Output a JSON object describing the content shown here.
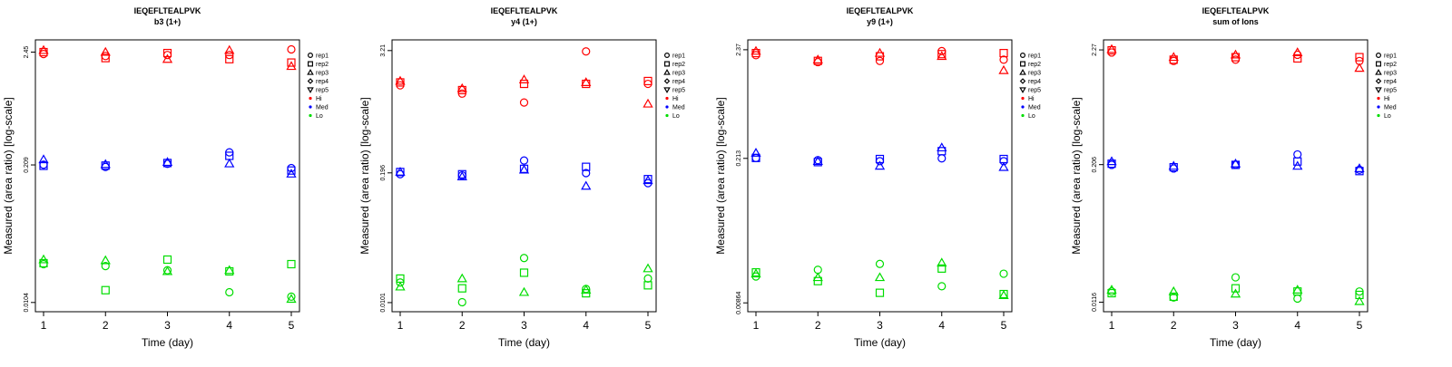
{
  "chart_data": [
    {
      "type": "scatter",
      "title": "IEQEFLTEALPVK",
      "subtitle": "b3 (1+)",
      "xlabel": "Time (day)",
      "ylabel": "Measured (area ratio) [log-scale]",
      "x_ticks": [
        1,
        2,
        3,
        4,
        5
      ],
      "y_ticks": [
        "0.0104",
        "0.209",
        "2.45"
      ],
      "ylim": [
        0.0085,
        3.2
      ],
      "y_scale": "log",
      "series": [
        {
          "group": "Hi",
          "color": "#ff0000",
          "points": {
            "rep1": [
              [
                1,
                2.35
              ],
              [
                2,
                2.25
              ],
              [
                3,
                2.3
              ],
              [
                4,
                2.3
              ],
              [
                5,
                2.6
              ]
            ],
            "rep2": [
              [
                1,
                2.45
              ],
              [
                2,
                2.15
              ],
              [
                3,
                2.4
              ],
              [
                4,
                2.1
              ],
              [
                5,
                1.95
              ]
            ],
            "rep3": [
              [
                1,
                2.55
              ],
              [
                2,
                2.45
              ],
              [
                3,
                2.1
              ],
              [
                4,
                2.55
              ],
              [
                5,
                1.8
              ]
            ]
          }
        },
        {
          "group": "Med",
          "color": "#0000ff",
          "points": {
            "rep1": [
              [
                1,
                0.21
              ],
              [
                2,
                0.2
              ],
              [
                3,
                0.214
              ],
              [
                4,
                0.275
              ],
              [
                5,
                0.195
              ]
            ],
            "rep2": [
              [
                1,
                0.205
              ],
              [
                2,
                0.206
              ],
              [
                3,
                0.218
              ],
              [
                4,
                0.255
              ],
              [
                5,
                0.185
              ]
            ],
            "rep3": [
              [
                1,
                0.235
              ],
              [
                2,
                0.212
              ],
              [
                3,
                0.222
              ],
              [
                4,
                0.215
              ],
              [
                5,
                0.172
              ]
            ]
          }
        },
        {
          "group": "Lo",
          "color": "#00dd00",
          "points": {
            "rep1": [
              [
                1,
                0.024
              ],
              [
                2,
                0.023
              ],
              [
                3,
                0.021
              ],
              [
                4,
                0.013
              ],
              [
                5,
                0.0118
              ]
            ],
            "rep2": [
              [
                1,
                0.0245
              ],
              [
                2,
                0.0136
              ],
              [
                3,
                0.0265
              ],
              [
                4,
                0.0205
              ],
              [
                5,
                0.024
              ]
            ],
            "rep3": [
              [
                1,
                0.0265
              ],
              [
                2,
                0.026
              ],
              [
                3,
                0.0205
              ],
              [
                4,
                0.021
              ],
              [
                5,
                0.0112
              ]
            ]
          }
        }
      ]
    },
    {
      "type": "scatter",
      "title": "IEQEFLTEALPVK",
      "subtitle": "y4 (1+)",
      "xlabel": "Time (day)",
      "ylabel": "Measured (area ratio) [log-scale]",
      "x_ticks": [
        1,
        2,
        3,
        4,
        5
      ],
      "y_ticks": [
        "0.0101",
        "0.196",
        "3.21"
      ],
      "ylim": [
        0.0082,
        4.1
      ],
      "y_scale": "log",
      "series": [
        {
          "group": "Hi",
          "color": "#ff0000",
          "points": {
            "rep1": [
              [
                1,
                1.45
              ],
              [
                2,
                1.2
              ],
              [
                3,
                0.98
              ],
              [
                4,
                3.15
              ],
              [
                5,
                1.5
              ]
            ],
            "rep2": [
              [
                1,
                1.55
              ],
              [
                2,
                1.3
              ],
              [
                3,
                1.5
              ],
              [
                4,
                1.5
              ],
              [
                5,
                1.6
              ]
            ],
            "rep3": [
              [
                1,
                1.6
              ],
              [
                2,
                1.35
              ],
              [
                3,
                1.65
              ],
              [
                4,
                1.55
              ],
              [
                5,
                0.95
              ]
            ]
          }
        },
        {
          "group": "Med",
          "color": "#0000ff",
          "points": {
            "rep1": [
              [
                1,
                0.19
              ],
              [
                2,
                0.185
              ],
              [
                3,
                0.26
              ],
              [
                4,
                0.195
              ],
              [
                5,
                0.155
              ]
            ],
            "rep2": [
              [
                1,
                0.2
              ],
              [
                2,
                0.19
              ],
              [
                3,
                0.215
              ],
              [
                4,
                0.225
              ],
              [
                5,
                0.17
              ]
            ],
            "rep3": [
              [
                1,
                0.2
              ],
              [
                2,
                0.18
              ],
              [
                3,
                0.21
              ],
              [
                4,
                0.145
              ],
              [
                5,
                0.165
              ]
            ]
          }
        },
        {
          "group": "Lo",
          "color": "#00dd00",
          "points": {
            "rep1": [
              [
                1,
                0.016
              ],
              [
                2,
                0.0102
              ],
              [
                3,
                0.028
              ],
              [
                4,
                0.0138
              ],
              [
                5,
                0.0175
              ]
            ],
            "rep2": [
              [
                1,
                0.0175
              ],
              [
                2,
                0.014
              ],
              [
                3,
                0.02
              ],
              [
                4,
                0.0125
              ],
              [
                5,
                0.015
              ]
            ],
            "rep3": [
              [
                1,
                0.0145
              ],
              [
                2,
                0.0175
              ],
              [
                3,
                0.0128
              ],
              [
                4,
                0.0135
              ],
              [
                5,
                0.022
              ]
            ]
          }
        }
      ]
    },
    {
      "type": "scatter",
      "title": "IEQEFLTEALPVK",
      "subtitle": "y9 (1+)",
      "xlabel": "Time (day)",
      "ylabel": "Measured (area ratio) [log-scale]",
      "x_ticks": [
        1,
        2,
        3,
        4,
        5
      ],
      "y_ticks": [
        "0.00864",
        "0.213",
        "2.37"
      ],
      "ylim": [
        0.0071,
        2.95
      ],
      "y_scale": "log",
      "series": [
        {
          "group": "Hi",
          "color": "#ff0000",
          "points": {
            "rep1": [
              [
                1,
                2.1
              ],
              [
                2,
                1.8
              ],
              [
                3,
                1.85
              ],
              [
                4,
                2.3
              ],
              [
                5,
                1.9
              ]
            ],
            "rep2": [
              [
                1,
                2.2
              ],
              [
                2,
                1.85
              ],
              [
                3,
                2.05
              ],
              [
                4,
                2.15
              ],
              [
                5,
                2.2
              ]
            ],
            "rep3": [
              [
                1,
                2.3
              ],
              [
                2,
                1.9
              ],
              [
                3,
                2.2
              ],
              [
                4,
                2.05
              ],
              [
                5,
                1.5
              ]
            ]
          }
        },
        {
          "group": "Med",
          "color": "#0000ff",
          "points": {
            "rep1": [
              [
                1,
                0.215
              ],
              [
                2,
                0.205
              ],
              [
                3,
                0.2
              ],
              [
                4,
                0.213
              ],
              [
                5,
                0.2
              ]
            ],
            "rep2": [
              [
                1,
                0.215
              ],
              [
                2,
                0.196
              ],
              [
                3,
                0.21
              ],
              [
                4,
                0.25
              ],
              [
                5,
                0.21
              ]
            ],
            "rep3": [
              [
                1,
                0.24
              ],
              [
                2,
                0.2
              ],
              [
                3,
                0.18
              ],
              [
                4,
                0.27
              ],
              [
                5,
                0.175
              ]
            ]
          }
        },
        {
          "group": "Lo",
          "color": "#00dd00",
          "points": {
            "rep1": [
              [
                1,
                0.0155
              ],
              [
                2,
                0.018
              ],
              [
                3,
                0.0205
              ],
              [
                4,
                0.0125
              ],
              [
                5,
                0.0165
              ]
            ],
            "rep2": [
              [
                1,
                0.017
              ],
              [
                2,
                0.014
              ],
              [
                3,
                0.0108
              ],
              [
                4,
                0.0185
              ],
              [
                5,
                0.0105
              ]
            ],
            "rep3": [
              [
                1,
                0.0165
              ],
              [
                2,
                0.0152
              ],
              [
                3,
                0.0152
              ],
              [
                4,
                0.021
              ],
              [
                5,
                0.0102
              ]
            ]
          }
        }
      ]
    },
    {
      "type": "scatter",
      "title": "IEQEFLTEALPVK",
      "subtitle": "sum of Ions",
      "xlabel": "Time (day)",
      "ylabel": "Measured (area ratio) [log-scale]",
      "x_ticks": [
        1,
        2,
        3,
        4,
        5
      ],
      "y_ticks": [
        "0.0116",
        "0.206",
        "2.27"
      ],
      "ylim": [
        0.0095,
        2.8
      ],
      "y_scale": "log",
      "series": [
        {
          "group": "Hi",
          "color": "#ff0000",
          "points": {
            "rep1": [
              [
                1,
                2.15
              ],
              [
                2,
                1.8
              ],
              [
                3,
                1.85
              ],
              [
                4,
                2.05
              ],
              [
                5,
                1.8
              ]
            ],
            "rep2": [
              [
                1,
                2.25
              ],
              [
                2,
                1.85
              ],
              [
                3,
                1.95
              ],
              [
                4,
                1.9
              ],
              [
                5,
                1.95
              ]
            ],
            "rep3": [
              [
                1,
                2.3
              ],
              [
                2,
                1.95
              ],
              [
                3,
                2.05
              ],
              [
                4,
                2.15
              ],
              [
                5,
                1.55
              ]
            ]
          }
        },
        {
          "group": "Med",
          "color": "#0000ff",
          "points": {
            "rep1": [
              [
                1,
                0.205
              ],
              [
                2,
                0.19
              ],
              [
                3,
                0.206
              ],
              [
                4,
                0.255
              ],
              [
                5,
                0.185
              ]
            ],
            "rep2": [
              [
                1,
                0.21
              ],
              [
                2,
                0.195
              ],
              [
                3,
                0.205
              ],
              [
                4,
                0.22
              ],
              [
                5,
                0.18
              ]
            ],
            "rep3": [
              [
                1,
                0.22
              ],
              [
                2,
                0.2
              ],
              [
                3,
                0.21
              ],
              [
                4,
                0.2
              ],
              [
                5,
                0.19
              ]
            ]
          }
        },
        {
          "group": "Lo",
          "color": "#00dd00",
          "points": {
            "rep1": [
              [
                1,
                0.0145
              ],
              [
                2,
                0.0128
              ],
              [
                3,
                0.0195
              ],
              [
                4,
                0.0125
              ],
              [
                5,
                0.0145
              ]
            ],
            "rep2": [
              [
                1,
                0.014
              ],
              [
                2,
                0.013
              ],
              [
                3,
                0.0155
              ],
              [
                4,
                0.0145
              ],
              [
                5,
                0.0135
              ]
            ],
            "rep3": [
              [
                1,
                0.015
              ],
              [
                2,
                0.0145
              ],
              [
                3,
                0.0138
              ],
              [
                4,
                0.015
              ],
              [
                5,
                0.0118
              ]
            ]
          }
        }
      ]
    }
  ],
  "legend": {
    "placement": "right",
    "shapes": [
      {
        "label": "rep1",
        "shape": "circle"
      },
      {
        "label": "rep2",
        "shape": "square"
      },
      {
        "label": "rep3",
        "shape": "triangle-up"
      },
      {
        "label": "rep4",
        "shape": "diamond"
      },
      {
        "label": "rep5",
        "shape": "triangle-down"
      }
    ],
    "colors": [
      {
        "label": "Hi",
        "color": "#ff0000"
      },
      {
        "label": "Med",
        "color": "#0000ff"
      },
      {
        "label": "Lo",
        "color": "#00dd00"
      }
    ]
  }
}
